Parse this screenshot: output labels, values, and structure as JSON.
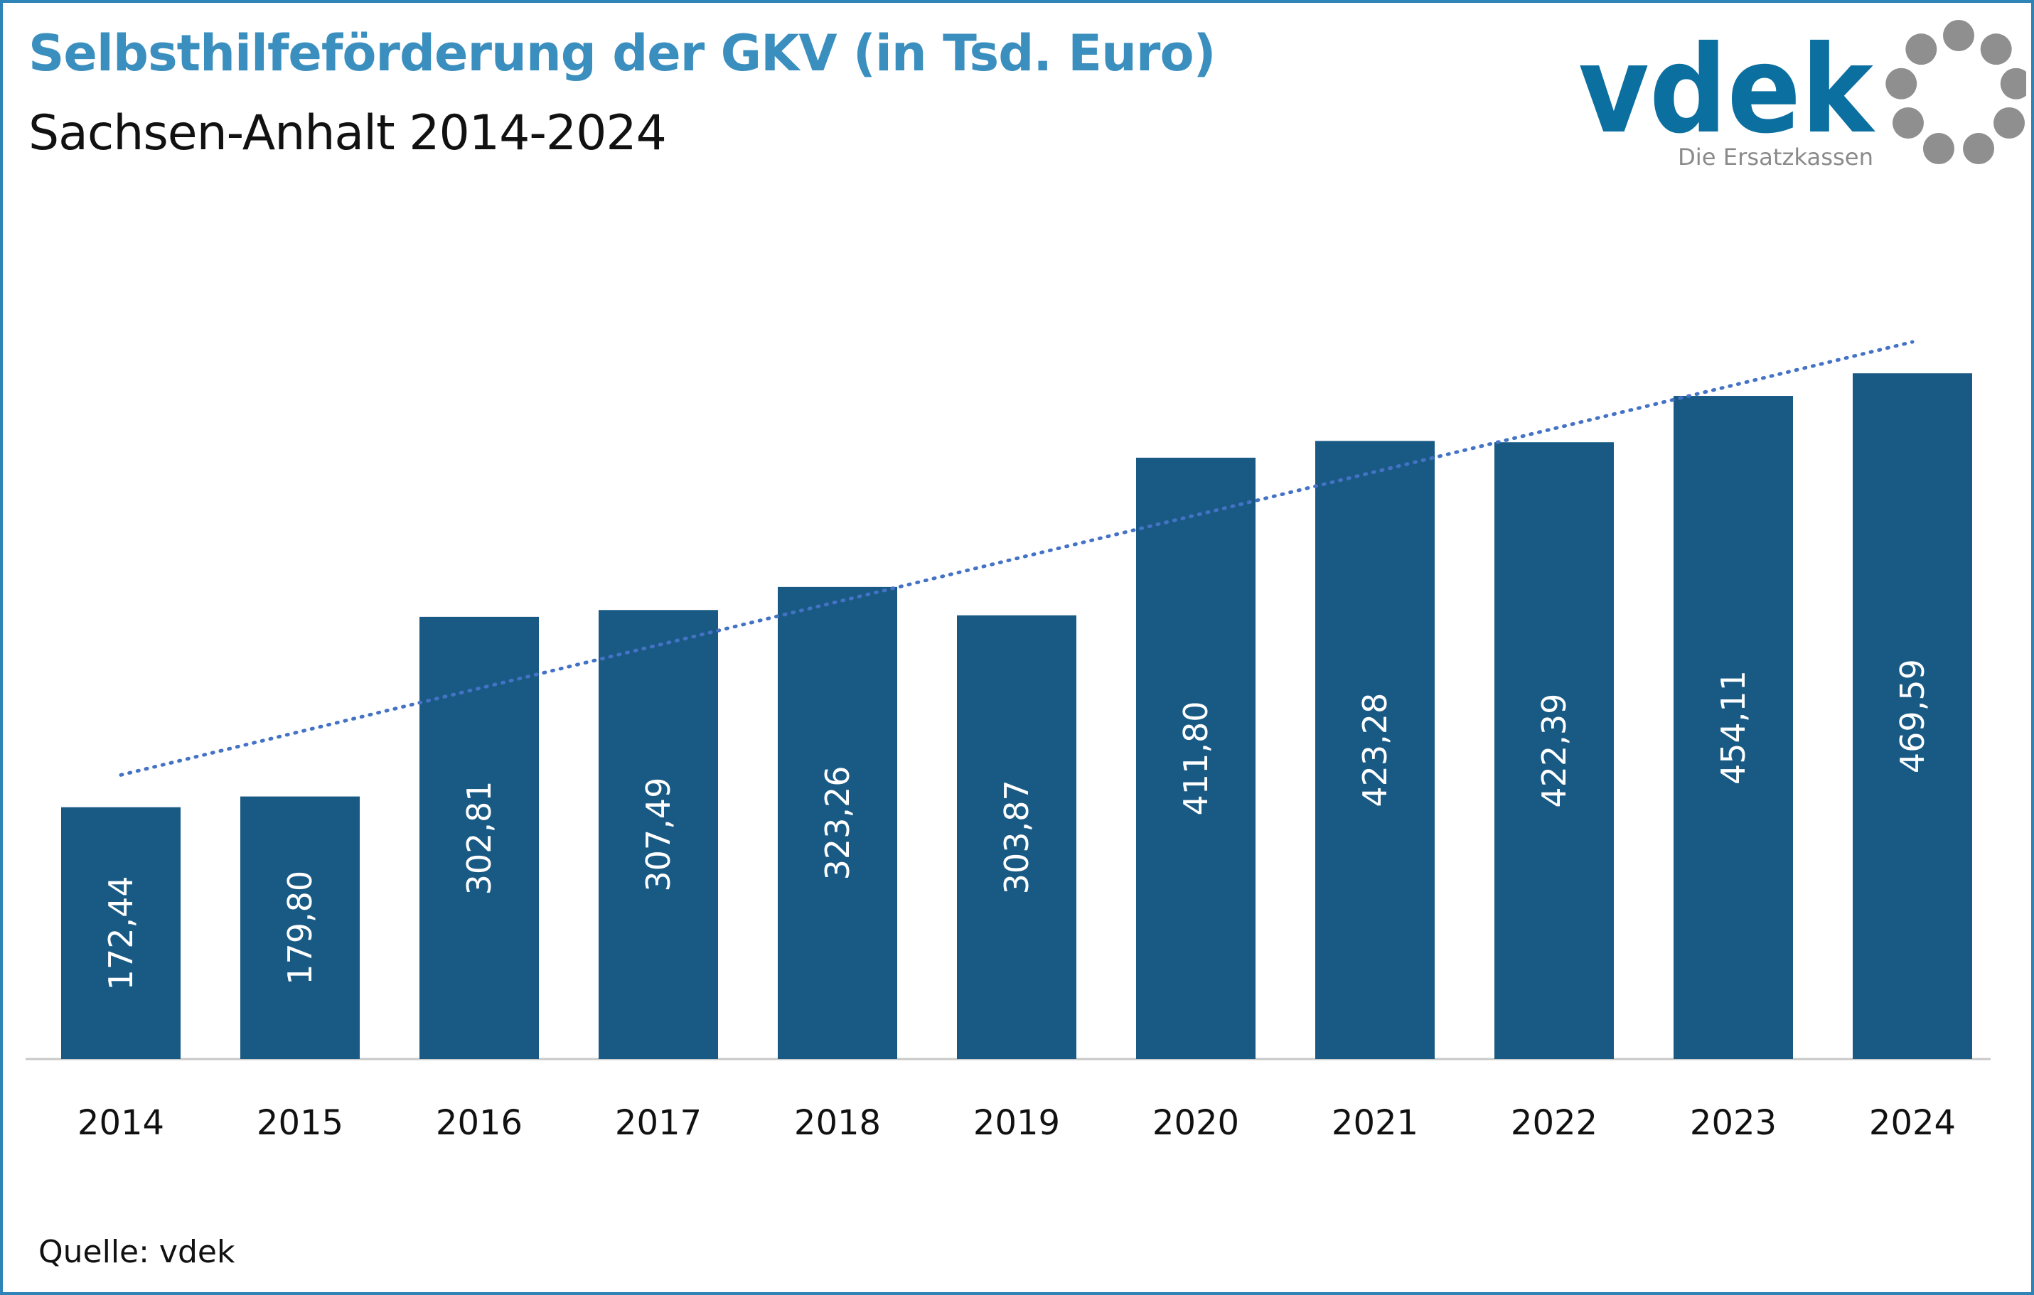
{
  "header": {
    "title": "Selbsthilfeförderung der GKV (in Tsd. Euro)",
    "subtitle": "Sachsen-Anhalt 2014-2024"
  },
  "logo": {
    "wordmark": "vdek",
    "tagline": "Die Ersatzkassen",
    "icon": "circle-of-dots-icon",
    "colors": {
      "wordmark": "#0b6fa0",
      "tagline": "#8a8a8a",
      "dots": "#8f8f8f"
    }
  },
  "footer": {
    "source": "Quelle: vdek"
  },
  "colors": {
    "bar": "#195a85",
    "trend": "#4472c4",
    "title": "#3a8fbf",
    "axis": "#c8c8c8"
  },
  "chart_data": {
    "type": "bar",
    "title": "Selbsthilfeförderung der GKV (in Tsd. Euro)",
    "subtitle": "Sachsen-Anhalt 2014-2024",
    "categories": [
      "2014",
      "2015",
      "2016",
      "2017",
      "2018",
      "2019",
      "2020",
      "2021",
      "2022",
      "2023",
      "2024"
    ],
    "values": [
      172.44,
      179.8,
      302.81,
      307.49,
      323.26,
      303.87,
      411.8,
      423.28,
      422.39,
      454.11,
      469.59
    ],
    "value_labels": [
      "172,44",
      "179,80",
      "302,81",
      "307,49",
      "323,26",
      "303,87",
      "411,80",
      "423,28",
      "422,39",
      "454,11",
      "469,59"
    ],
    "ylim": [
      0,
      477
    ],
    "xlabel": "",
    "ylabel": "",
    "grid": false,
    "trendline": {
      "type": "linear",
      "style": "dotted"
    },
    "legend": "none"
  }
}
